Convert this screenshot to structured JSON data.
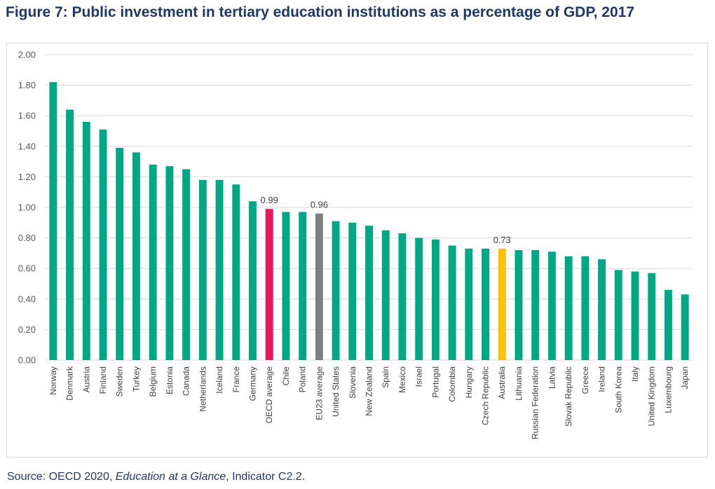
{
  "title": "Figure 7: Public investment in tertiary education institutions as a percentage of GDP, 2017",
  "source": {
    "prefix": "Source: OECD 2020, ",
    "italic": "Education at a Glance",
    "suffix": ", Indicator C2.2."
  },
  "colors": {
    "default": "#00a885",
    "oecd_average": "#e8175d",
    "eu23_average": "#7f7f7f",
    "australia": "#ffc000",
    "grid": "#d9d9d9",
    "tick_text": "#595959",
    "title": "#1f3864"
  },
  "chart_data": {
    "type": "bar",
    "title": "Figure 7: Public investment in tertiary education institutions as a percentage of GDP, 2017",
    "xlabel": "",
    "ylabel": "",
    "ylim": [
      0,
      2.0
    ],
    "yticks": [
      "0.00",
      "0.20",
      "0.40",
      "0.60",
      "0.80",
      "1.00",
      "1.20",
      "1.40",
      "1.60",
      "1.80",
      "2.00"
    ],
    "grid": true,
    "legend": "none",
    "categories": [
      "Norway",
      "Denmark",
      "Austria",
      "Finland",
      "Sweden",
      "Turkey",
      "Belgium",
      "Estonia",
      "Canada",
      "Netherlands",
      "Iceland",
      "France",
      "Germany",
      "OECD average",
      "Chile",
      "Poland",
      "EU23 average",
      "United States",
      "Slovenia",
      "New Zealand",
      "Spain",
      "Mexico",
      "Israel",
      "Portugal",
      "Colombia",
      "Hungary",
      "Czech Republic",
      "Australia",
      "Lithuania",
      "Russian Federation",
      "Latvia",
      "Slovak Republic",
      "Greece",
      "Ireland",
      "South Korea",
      "Italy",
      "United Kingdom",
      "Luxembourg",
      "Japan"
    ],
    "values": [
      1.82,
      1.64,
      1.56,
      1.51,
      1.39,
      1.36,
      1.28,
      1.27,
      1.25,
      1.18,
      1.18,
      1.15,
      1.04,
      0.99,
      0.97,
      0.97,
      0.96,
      0.91,
      0.9,
      0.88,
      0.85,
      0.83,
      0.8,
      0.79,
      0.75,
      0.73,
      0.73,
      0.73,
      0.72,
      0.72,
      0.71,
      0.68,
      0.68,
      0.66,
      0.59,
      0.58,
      0.57,
      0.46,
      0.43
    ],
    "highlights": {
      "OECD average": "oecd_average",
      "EU23 average": "eu23_average",
      "Australia": "australia"
    },
    "data_labels": [
      {
        "category": "OECD average",
        "text": "0.99"
      },
      {
        "category": "EU23 average",
        "text": "0.96"
      },
      {
        "category": "Australia",
        "text": "0.73"
      }
    ]
  }
}
